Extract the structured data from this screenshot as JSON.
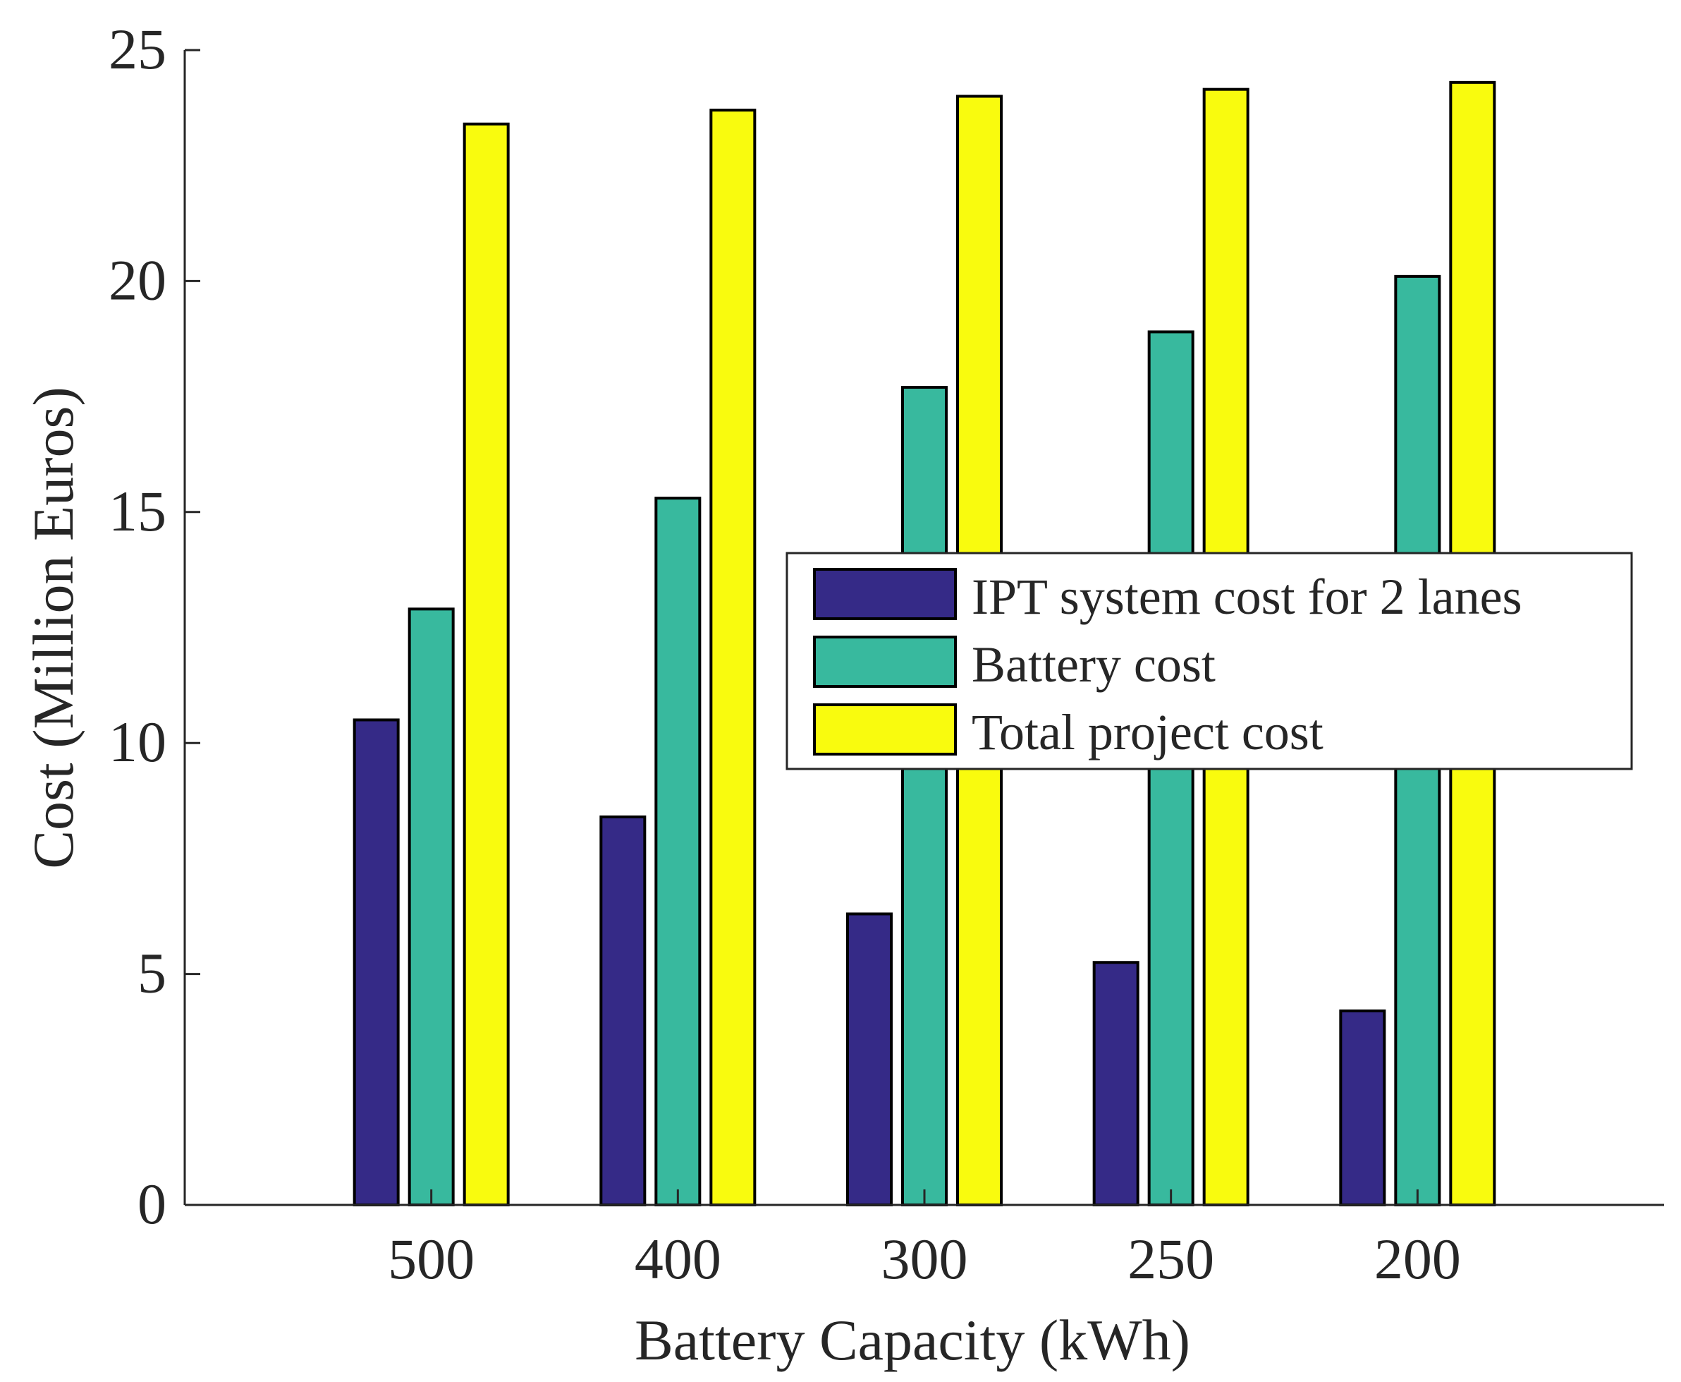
{
  "chart_data": {
    "type": "bar",
    "title": "",
    "xlabel": "Battery Capacity (kWh)",
    "ylabel": "Cost (Million Euros)",
    "ylim": [
      0,
      25
    ],
    "yticks": [
      0,
      5,
      10,
      15,
      20,
      25
    ],
    "xlim": [
      0,
      6
    ],
    "grid": false,
    "legend_position": "center-right",
    "categories": [
      "500",
      "400",
      "300",
      "250",
      "200"
    ],
    "series": [
      {
        "name": "IPT system cost for 2 lanes",
        "color": "#352a87",
        "values": [
          10.5,
          8.4,
          6.3,
          5.25,
          4.2
        ]
      },
      {
        "name": "Battery cost",
        "color": "#38b99e",
        "values": [
          12.9,
          15.3,
          17.7,
          18.9,
          20.1
        ]
      },
      {
        "name": "Total project cost",
        "color": "#f9fb0e",
        "values": [
          23.4,
          23.7,
          24.0,
          24.15,
          24.3
        ]
      }
    ]
  }
}
